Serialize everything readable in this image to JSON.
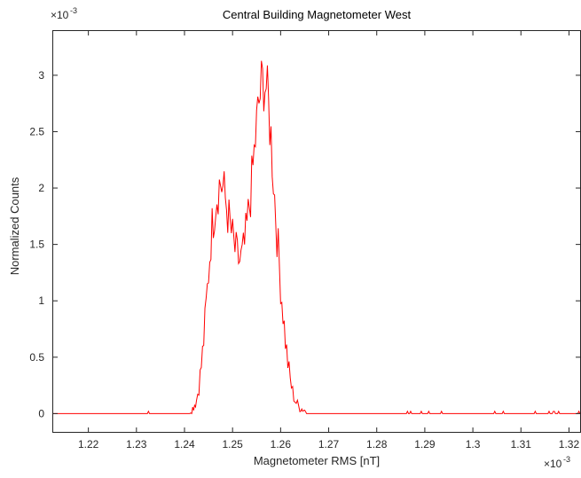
{
  "chart_data": {
    "type": "line",
    "title": "Central Building Magnetometer West",
    "xlabel": "Magnetometer RMS [nT]",
    "ylabel": "Normalized Counts",
    "x_exponent_label": "×10",
    "x_exponent_power": "-3",
    "y_exponent_label": "×10",
    "y_exponent_power": "-3",
    "x_scale_factor": 0.001,
    "y_scale_factor": 0.001,
    "xlim": [
      1.2125,
      1.3225
    ],
    "ylim": [
      -0.17,
      3.4
    ],
    "xticks": [
      1.22,
      1.23,
      1.24,
      1.25,
      1.26,
      1.27,
      1.28,
      1.29,
      1.3,
      1.31,
      1.32
    ],
    "xtick_labels": [
      "1.22",
      "1.23",
      "1.24",
      "1.25",
      "1.26",
      "1.27",
      "1.28",
      "1.29",
      "1.3",
      "1.31",
      "1.32"
    ],
    "yticks": [
      0,
      0.5,
      1,
      1.5,
      2,
      2.5,
      3
    ],
    "ytick_labels": [
      "0",
      "0.5",
      "1",
      "1.5",
      "2",
      "2.5",
      "3"
    ],
    "grid": false,
    "series": [
      {
        "color": "#ff0000",
        "x": [
          1.2125,
          1.2405,
          1.2415,
          1.2425,
          1.243,
          1.2435,
          1.244,
          1.2445,
          1.245,
          1.2455,
          1.246,
          1.2465,
          1.247,
          1.2475,
          1.248,
          1.2485,
          1.249,
          1.2495,
          1.25,
          1.2505,
          1.251,
          1.2515,
          1.252,
          1.2525,
          1.253,
          1.2535,
          1.254,
          1.2545,
          1.255,
          1.2555,
          1.256,
          1.2565,
          1.257,
          1.2575,
          1.258,
          1.2585,
          1.259,
          1.2595,
          1.26,
          1.2605,
          1.261,
          1.2615,
          1.262,
          1.2625,
          1.263,
          1.2635,
          1.264,
          1.265,
          1.266,
          1.268,
          1.3225
        ],
        "y": [
          0,
          0,
          0.03,
          0.12,
          0.25,
          0.42,
          0.65,
          0.95,
          1.25,
          1.55,
          1.75,
          1.9,
          2.0,
          2.05,
          2.0,
          1.9,
          1.78,
          1.65,
          1.55,
          1.45,
          1.38,
          1.35,
          1.38,
          1.48,
          1.65,
          1.85,
          2.05,
          2.3,
          2.55,
          2.75,
          2.9,
          2.95,
          2.9,
          2.7,
          2.45,
          2.1,
          1.75,
          1.45,
          1.15,
          0.9,
          0.65,
          0.45,
          0.3,
          0.19,
          0.12,
          0.08,
          0.05,
          0.03,
          0.015,
          0,
          0
        ]
      }
    ]
  }
}
